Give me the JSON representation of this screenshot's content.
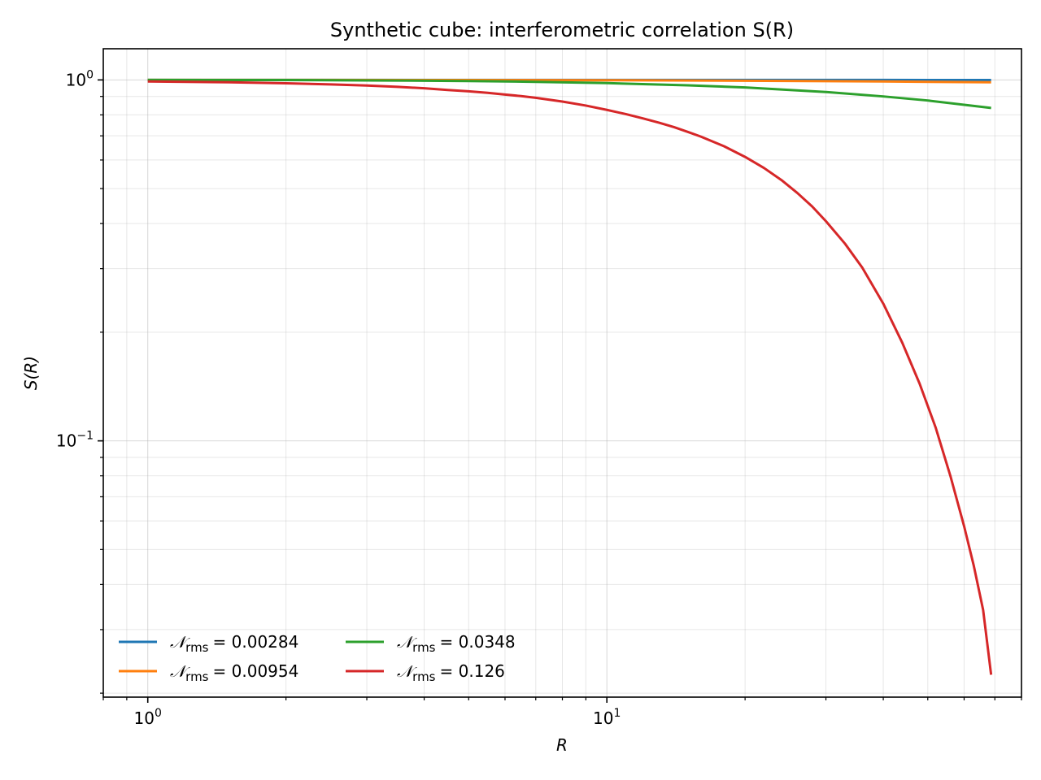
{
  "chart_data": {
    "type": "line",
    "title": "Synthetic cube: interferometric correlation S(R)",
    "xlabel": "R",
    "ylabel": "S(R)",
    "xscale": "log",
    "yscale": "log",
    "xlim": [
      0.8,
      80
    ],
    "ylim": [
      0.0195,
      1.22
    ],
    "grid": "both",
    "legend_position": "lower-left",
    "legend_columns": 2,
    "x_ticks": [
      {
        "value": 1,
        "base": "10",
        "exp": "0"
      },
      {
        "value": 10,
        "base": "10",
        "exp": "1"
      }
    ],
    "y_ticks": [
      {
        "value": 1,
        "base": "10",
        "exp": "0"
      },
      {
        "value": 0.1,
        "base": "10",
        "exp": "−1"
      }
    ],
    "series": [
      {
        "name_symbol": "𝒩",
        "name_sub": "rms",
        "name_value": "= 0.00284",
        "color": "#1f77b4",
        "x": [
          1,
          2,
          5,
          10,
          20,
          40,
          68.7
        ],
        "y": [
          1.0,
          1.0,
          1.0,
          1.0,
          1.0,
          1.0,
          0.999
        ]
      },
      {
        "name_symbol": "𝒩",
        "name_sub": "rms",
        "name_value": "= 0.00954",
        "color": "#ff7f0e",
        "x": [
          1,
          2,
          5,
          10,
          20,
          40,
          68.7
        ],
        "y": [
          1.0,
          1.0,
          0.999,
          0.998,
          0.995,
          0.99,
          0.985
        ]
      },
      {
        "name_symbol": "𝒩",
        "name_sub": "rms",
        "name_value": "= 0.0348",
        "color": "#2ca02c",
        "x": [
          1,
          2,
          3,
          5,
          7,
          10,
          15,
          20,
          30,
          40,
          50,
          68.7
        ],
        "y": [
          1.0,
          0.999,
          0.997,
          0.993,
          0.988,
          0.98,
          0.966,
          0.953,
          0.926,
          0.9,
          0.877,
          0.836
        ]
      },
      {
        "name_symbol": "𝒩",
        "name_sub": "rms",
        "name_value": "= 0.126",
        "color": "#d62728",
        "x": [
          1,
          1.5,
          2,
          2.5,
          3,
          3.5,
          4,
          4.5,
          5,
          5.5,
          6,
          6.5,
          7,
          8,
          9,
          10,
          11,
          12,
          13,
          14,
          15,
          16,
          18,
          20,
          22,
          24,
          26,
          28,
          30,
          33,
          36,
          40,
          44,
          48,
          52,
          56,
          60,
          63,
          66,
          68.7
        ],
        "y": [
          0.99,
          0.985,
          0.979,
          0.972,
          0.965,
          0.957,
          0.948,
          0.938,
          0.93,
          0.921,
          0.911,
          0.902,
          0.892,
          0.871,
          0.849,
          0.826,
          0.804,
          0.782,
          0.761,
          0.74,
          0.718,
          0.697,
          0.655,
          0.612,
          0.57,
          0.528,
          0.486,
          0.446,
          0.406,
          0.352,
          0.302,
          0.24,
          0.187,
          0.144,
          0.109,
          0.08,
          0.058,
          0.045,
          0.034,
          0.0225
        ]
      }
    ]
  }
}
